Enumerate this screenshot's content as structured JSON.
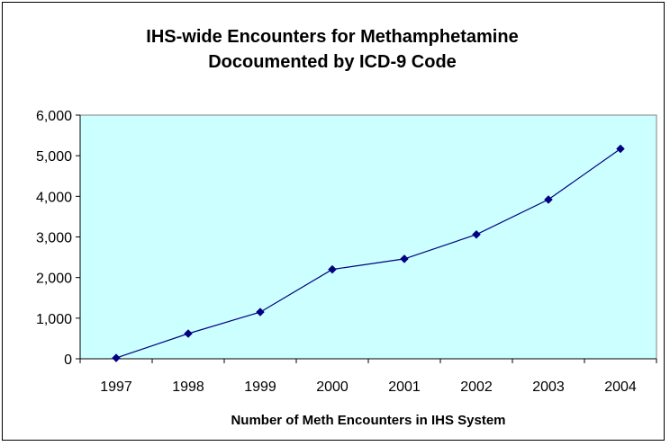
{
  "chart_data": {
    "type": "line",
    "title_lines": [
      "IHS-wide Encounters for Methamphetamine",
      "Docoumented by ICD-9 Code"
    ],
    "xlabel": "Number of Meth Encounters in IHS System",
    "ylabel": "",
    "categories": [
      "1997",
      "1998",
      "1999",
      "2000",
      "2001",
      "2002",
      "2003",
      "2004"
    ],
    "series": [
      {
        "values": [
          20,
          620,
          1150,
          2200,
          2460,
          3060,
          3920,
          5170
        ]
      }
    ],
    "ylim": [
      0,
      6000
    ],
    "yticks": [
      0,
      1000,
      2000,
      3000,
      4000,
      5000,
      6000
    ],
    "ytick_labels": [
      "0",
      "1,000",
      "2,000",
      "3,000",
      "4,000",
      "5,000",
      "6,000"
    ],
    "grid": false,
    "legend": "none",
    "colors": {
      "plot_background": "#ccffff",
      "line": "#000080",
      "marker": "#000080",
      "axis": "#000000"
    },
    "marker": "diamond"
  }
}
